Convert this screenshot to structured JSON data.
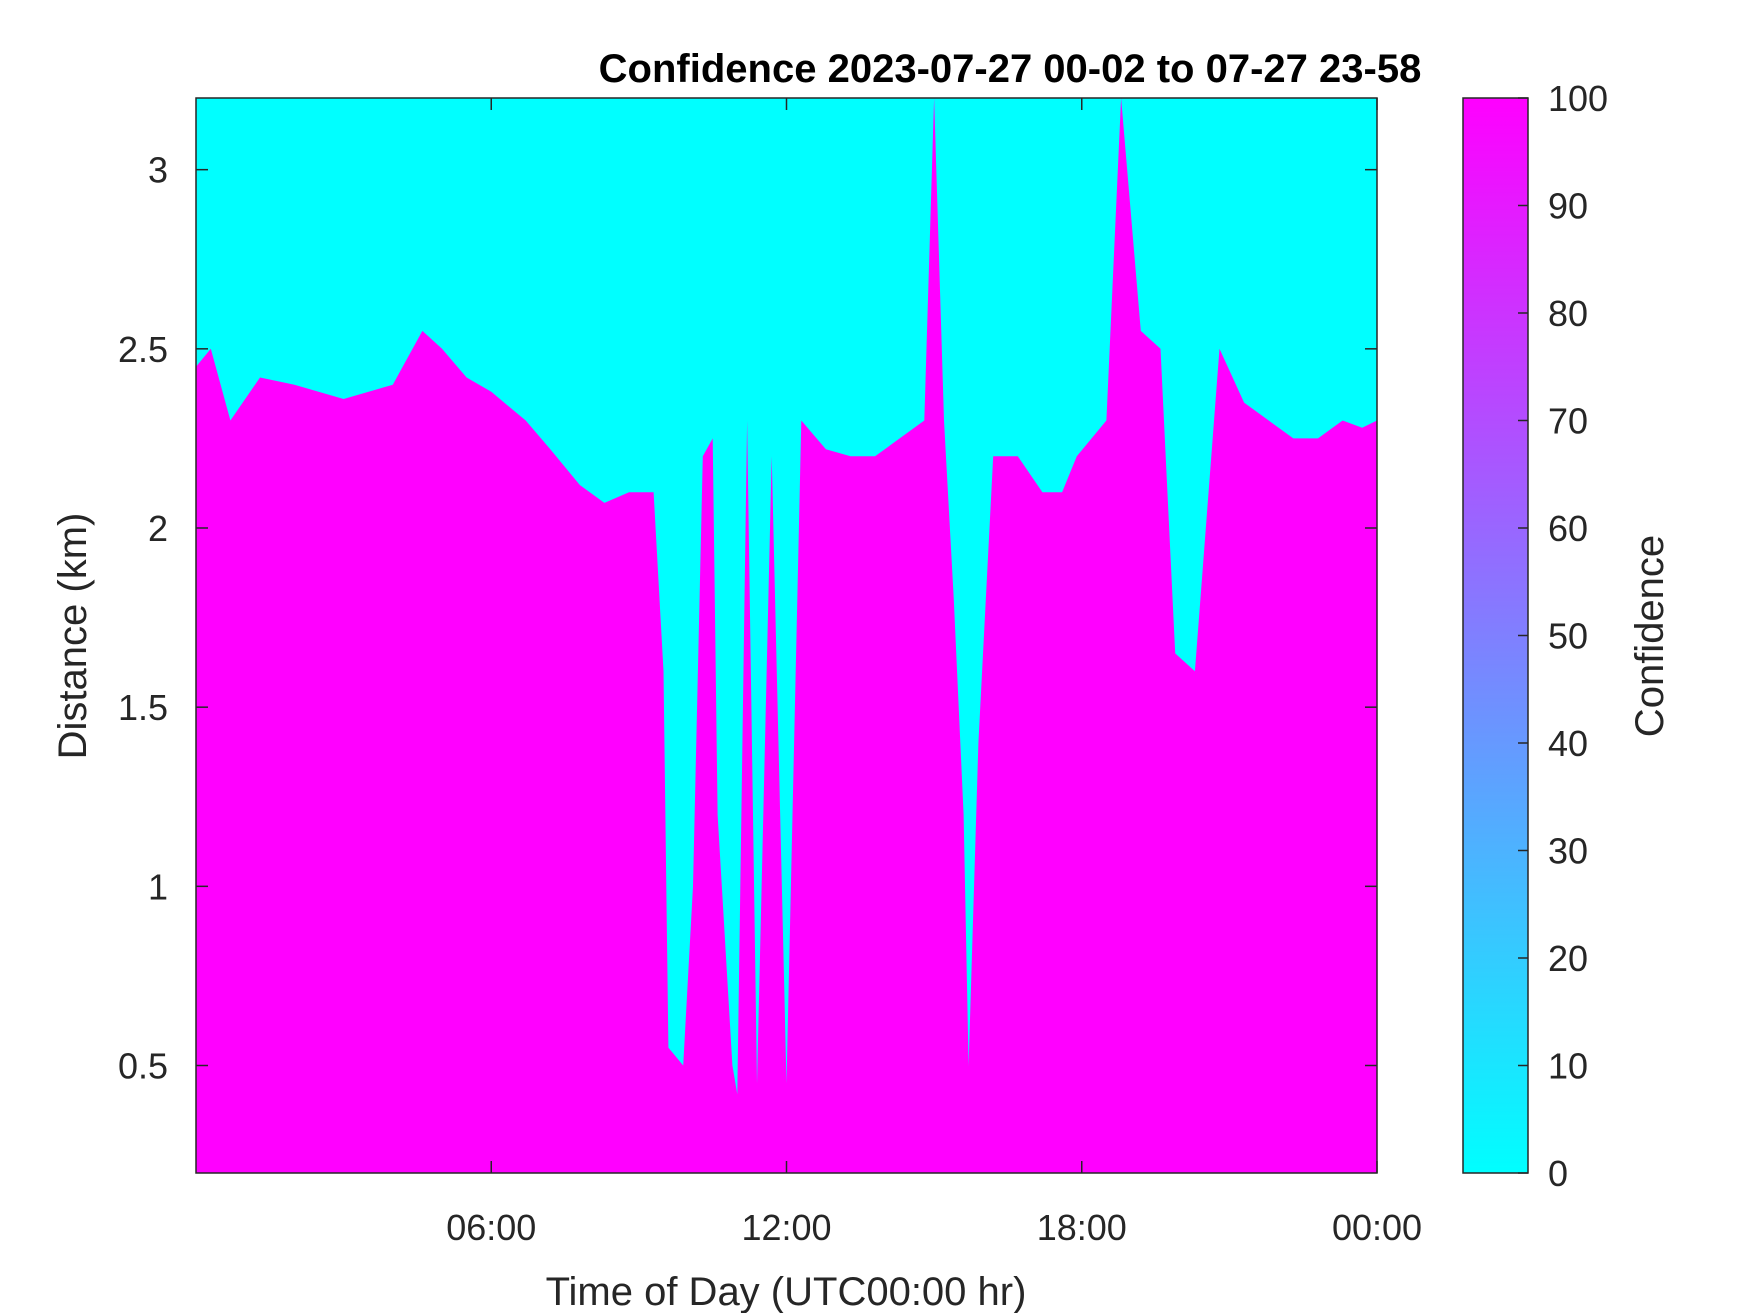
{
  "chart_data": {
    "type": "heatmap",
    "title": "Confidence 2023-07-27 00-02 to 07-27 23-58",
    "xlabel": "Time of Day (UTC00:00 hr)",
    "ylabel": "Distance (km)",
    "colorbar_label": "Confidence",
    "xlim_hours": [
      0,
      24
    ],
    "ylim_km": [
      0.2,
      3.2
    ],
    "x_ticks": [
      {
        "hour": 6,
        "label": "06:00"
      },
      {
        "hour": 12,
        "label": "12:00"
      },
      {
        "hour": 18,
        "label": "18:00"
      },
      {
        "hour": 24,
        "label": "00:00"
      }
    ],
    "y_ticks": [
      {
        "value": 0.5,
        "label": "0.5"
      },
      {
        "value": 1,
        "label": "1"
      },
      {
        "value": 1.5,
        "label": "1.5"
      },
      {
        "value": 2,
        "label": "2"
      },
      {
        "value": 2.5,
        "label": "2.5"
      },
      {
        "value": 3,
        "label": "3"
      }
    ],
    "colorbar": {
      "range": [
        0,
        100
      ],
      "ticks": [
        {
          "value": 0,
          "label": "0"
        },
        {
          "value": 10,
          "label": "10"
        },
        {
          "value": 20,
          "label": "20"
        },
        {
          "value": 30,
          "label": "30"
        },
        {
          "value": 40,
          "label": "40"
        },
        {
          "value": 50,
          "label": "50"
        },
        {
          "value": 60,
          "label": "60"
        },
        {
          "value": 70,
          "label": "70"
        },
        {
          "value": 80,
          "label": "80"
        },
        {
          "value": 90,
          "label": "90"
        },
        {
          "value": 100,
          "label": "100"
        }
      ],
      "color_low": "#00ffff",
      "color_high": "#ff00ff"
    },
    "high_confidence_top_km": [
      [
        0.0,
        2.45
      ],
      [
        0.3,
        2.5
      ],
      [
        0.7,
        2.3
      ],
      [
        1.3,
        2.42
      ],
      [
        2.0,
        2.4
      ],
      [
        3.0,
        2.36
      ],
      [
        4.0,
        2.4
      ],
      [
        4.6,
        2.55
      ],
      [
        5.0,
        2.5
      ],
      [
        5.5,
        2.42
      ],
      [
        6.0,
        2.38
      ],
      [
        6.7,
        2.3
      ],
      [
        7.2,
        2.22
      ],
      [
        7.8,
        2.12
      ],
      [
        8.3,
        2.07
      ],
      [
        8.8,
        2.1
      ],
      [
        9.3,
        2.1
      ],
      [
        9.5,
        1.6
      ],
      [
        9.6,
        0.55
      ],
      [
        9.9,
        0.5
      ],
      [
        10.1,
        1.0
      ],
      [
        10.3,
        2.2
      ],
      [
        10.5,
        2.25
      ],
      [
        10.6,
        1.2
      ],
      [
        10.9,
        0.5
      ],
      [
        11.0,
        0.42
      ],
      [
        11.2,
        2.3
      ],
      [
        11.4,
        0.45
      ],
      [
        11.7,
        2.2
      ],
      [
        12.0,
        0.45
      ],
      [
        12.3,
        2.3
      ],
      [
        12.8,
        2.22
      ],
      [
        13.3,
        2.2
      ],
      [
        13.8,
        2.2
      ],
      [
        14.3,
        2.25
      ],
      [
        14.8,
        2.3
      ],
      [
        15.0,
        3.2
      ],
      [
        15.2,
        2.3
      ],
      [
        15.4,
        1.8
      ],
      [
        15.6,
        1.2
      ],
      [
        15.7,
        0.5
      ],
      [
        15.9,
        1.4
      ],
      [
        16.2,
        2.2
      ],
      [
        16.7,
        2.2
      ],
      [
        17.2,
        2.1
      ],
      [
        17.6,
        2.1
      ],
      [
        17.9,
        2.2
      ],
      [
        18.2,
        2.25
      ],
      [
        18.5,
        2.3
      ],
      [
        18.8,
        3.2
      ],
      [
        19.2,
        2.55
      ],
      [
        19.6,
        2.5
      ],
      [
        19.9,
        1.65
      ],
      [
        20.3,
        1.6
      ],
      [
        20.8,
        2.5
      ],
      [
        21.3,
        2.35
      ],
      [
        21.8,
        2.3
      ],
      [
        22.3,
        2.25
      ],
      [
        22.8,
        2.25
      ],
      [
        23.3,
        2.3
      ],
      [
        23.7,
        2.28
      ],
      [
        24.0,
        2.3
      ]
    ]
  }
}
